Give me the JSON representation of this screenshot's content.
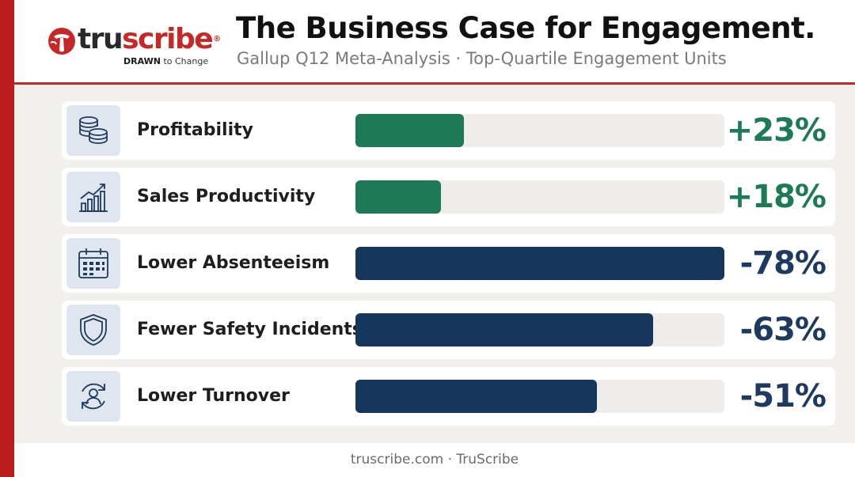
{
  "brand": {
    "name_prefix": "tru",
    "name_highlight": "scribe",
    "registered": "®",
    "tagline_bold": "DRAWN",
    "tagline_rest": " to Change",
    "accent_color": "#c62828"
  },
  "header": {
    "title": "The Business Case for Engagement.",
    "subtitle": "Gallup Q12 Meta-Analysis · Top-Quartile Engagement Units"
  },
  "colors": {
    "positive": "#1e7a56",
    "negative": "#17365c",
    "positive_text": "#1e7a56",
    "negative_text": "#1f3a5f"
  },
  "chart_data": {
    "type": "bar",
    "orientation": "horizontal",
    "title": "The Business Case for Engagement.",
    "subtitle": "Gallup Q12 Meta-Analysis · Top-Quartile Engagement Units",
    "xlim": [
      0,
      78
    ],
    "grid": false,
    "categories": [
      "Profitability",
      "Sales Productivity",
      "Lower Absenteeism",
      "Fewer Safety Incidents",
      "Lower Turnover"
    ],
    "values": [
      23,
      18,
      -78,
      -63,
      -51
    ],
    "value_labels": [
      "+23%",
      "+18%",
      "-78%",
      "-63%",
      "-51%"
    ],
    "icons": [
      "coins-icon",
      "growth-chart-icon",
      "calendar-icon",
      "shield-icon",
      "turnover-icon"
    ]
  },
  "footer": {
    "text": "truscribe.com · TruScribe"
  }
}
